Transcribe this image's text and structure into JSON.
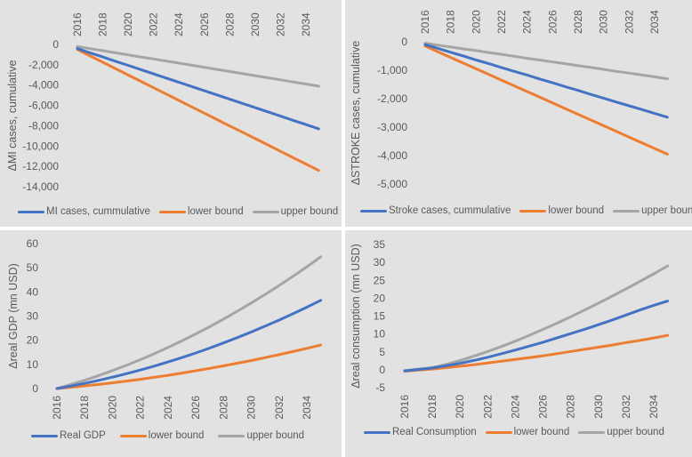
{
  "colors": {
    "central": "#4472c4",
    "lower": "#ed7d31",
    "upper": "#a5a5a5",
    "text": "#595959"
  },
  "chart_data": [
    {
      "type": "line",
      "title": "",
      "xlabel": "",
      "ylabel": "ΔMI cases, cumulative",
      "x": [
        2016,
        2017,
        2018,
        2019,
        2020,
        2021,
        2022,
        2023,
        2024,
        2025,
        2026,
        2027,
        2028,
        2029,
        2030,
        2031,
        2032,
        2033,
        2034,
        2035
      ],
      "xticks": [
        "2016",
        "2018",
        "2020",
        "2022",
        "2024",
        "2026",
        "2028",
        "2030",
        "2032",
        "2034"
      ],
      "yticks": [
        "0",
        "-2,000",
        "-4,000",
        "-6,000",
        "-8,000",
        "-10,000",
        "-12,000",
        "-14,000"
      ],
      "ylim": [
        -14000,
        0
      ],
      "legend_position": "bottom",
      "series": [
        {
          "name": "MI cases, cummulative",
          "values": [
            -400,
            -820,
            -1230,
            -1650,
            -2060,
            -2480,
            -2900,
            -3310,
            -3730,
            -4140,
            -4560,
            -4970,
            -5390,
            -5800,
            -6220,
            -6630,
            -7050,
            -7470,
            -7880,
            -8300
          ]
        },
        {
          "name": "lower bound",
          "values": [
            -500,
            -1130,
            -1750,
            -2380,
            -3010,
            -3630,
            -4260,
            -4880,
            -5510,
            -6140,
            -6760,
            -7390,
            -8020,
            -8640,
            -9270,
            -9890,
            -10520,
            -11150,
            -11770,
            -12400
          ]
        },
        {
          "name": "upper bound",
          "values": [
            -200,
            -410,
            -610,
            -820,
            -1020,
            -1230,
            -1430,
            -1640,
            -1840,
            -2050,
            -2250,
            -2460,
            -2660,
            -2870,
            -3070,
            -3280,
            -3480,
            -3690,
            -3890,
            -4100
          ]
        }
      ]
    },
    {
      "type": "line",
      "title": "",
      "xlabel": "",
      "ylabel": "ΔSTROKE cases, cumulative",
      "x": [
        2016,
        2017,
        2018,
        2019,
        2020,
        2021,
        2022,
        2023,
        2024,
        2025,
        2026,
        2027,
        2028,
        2029,
        2030,
        2031,
        2032,
        2033,
        2034,
        2035
      ],
      "xticks": [
        "2016",
        "2018",
        "2020",
        "2022",
        "2024",
        "2026",
        "2028",
        "2030",
        "2032",
        "2034"
      ],
      "yticks": [
        "0",
        "-1,000",
        "-2,000",
        "-3,000",
        "-4,000",
        "-5,000"
      ],
      "ylim": [
        -5000,
        0
      ],
      "legend_position": "bottom",
      "series": [
        {
          "name": "Stroke cases, cummulative",
          "values": [
            -100,
            -230,
            -370,
            -500,
            -640,
            -770,
            -910,
            -1040,
            -1170,
            -1310,
            -1440,
            -1580,
            -1710,
            -1850,
            -1980,
            -2120,
            -2250,
            -2380,
            -2520,
            -2650
          ]
        },
        {
          "name": "lower bound",
          "values": [
            -150,
            -350,
            -550,
            -750,
            -950,
            -1150,
            -1350,
            -1550,
            -1750,
            -1950,
            -2150,
            -2350,
            -2550,
            -2750,
            -2950,
            -3150,
            -3350,
            -3550,
            -3750,
            -3950
          ]
        },
        {
          "name": "upper bound",
          "values": [
            -50,
            -120,
            -180,
            -250,
            -310,
            -380,
            -440,
            -510,
            -580,
            -640,
            -710,
            -770,
            -840,
            -900,
            -970,
            -1040,
            -1100,
            -1170,
            -1230,
            -1300
          ]
        }
      ]
    },
    {
      "type": "line",
      "title": "",
      "xlabel": "",
      "ylabel": "Δreal GDP (mn USD)",
      "x": [
        2016,
        2017,
        2018,
        2019,
        2020,
        2021,
        2022,
        2023,
        2024,
        2025,
        2026,
        2027,
        2028,
        2029,
        2030,
        2031,
        2032,
        2033,
        2034,
        2035
      ],
      "xticks": [
        "2016",
        "2018",
        "2020",
        "2022",
        "2024",
        "2026",
        "2028",
        "2030",
        "2032",
        "2034"
      ],
      "yticks": [
        "60",
        "50",
        "40",
        "30",
        "20",
        "10",
        "0"
      ],
      "ylim": [
        0,
        60
      ],
      "legend_position": "bottom",
      "series": [
        {
          "name": "Real GDP",
          "values": [
            0,
            1.03,
            2.15,
            3.38,
            4.71,
            6.13,
            7.65,
            9.28,
            11.0,
            12.82,
            14.74,
            16.76,
            18.88,
            21.09,
            23.41,
            25.83,
            28.35,
            30.96,
            33.68,
            36.5
          ]
        },
        {
          "name": "lower bound",
          "values": [
            0,
            0.52,
            1.09,
            1.71,
            2.37,
            3.09,
            3.84,
            4.65,
            5.5,
            6.4,
            7.35,
            8.34,
            9.39,
            10.48,
            11.61,
            12.8,
            14.03,
            15.3,
            16.63,
            18.0
          ]
        },
        {
          "name": "upper bound",
          "values": [
            0,
            1.65,
            3.44,
            5.36,
            7.42,
            9.61,
            11.94,
            14.4,
            17.0,
            19.73,
            22.6,
            25.6,
            28.74,
            32.02,
            35.43,
            38.97,
            42.65,
            46.47,
            50.41,
            54.5
          ]
        }
      ]
    },
    {
      "type": "line",
      "title": "",
      "xlabel": "",
      "ylabel": "Δreal consumption (mn USD)",
      "x": [
        2016,
        2017,
        2018,
        2019,
        2020,
        2021,
        2022,
        2023,
        2024,
        2025,
        2026,
        2027,
        2028,
        2029,
        2030,
        2031,
        2032,
        2033,
        2034,
        2035
      ],
      "xticks": [
        "2016",
        "2018",
        "2020",
        "2022",
        "2024",
        "2026",
        "2028",
        "2030",
        "2032",
        "2034"
      ],
      "yticks": [
        "35",
        "30",
        "25",
        "20",
        "15",
        "10",
        "5",
        "0",
        "-5"
      ],
      "ylim": [
        -5,
        35
      ],
      "legend_position": "bottom",
      "series": [
        {
          "name": "Real Consumption",
          "values": [
            -0.3,
            0.1,
            0.5,
            1.1,
            1.8,
            2.6,
            3.5,
            4.5,
            5.5,
            6.6,
            7.7,
            8.9,
            10.1,
            11.3,
            12.6,
            13.9,
            15.3,
            16.7,
            18.0,
            19.2
          ]
        },
        {
          "name": "lower bound",
          "values": [
            -0.4,
            -0.1,
            0.2,
            0.6,
            1.0,
            1.4,
            1.9,
            2.4,
            2.9,
            3.4,
            3.9,
            4.5,
            5.1,
            5.7,
            6.3,
            6.9,
            7.6,
            8.2,
            8.9,
            9.6
          ]
        },
        {
          "name": "upper bound",
          "values": [
            -0.2,
            0.2,
            0.6,
            1.5,
            2.6,
            3.8,
            5.1,
            6.5,
            8.0,
            9.6,
            11.3,
            13.0,
            14.8,
            16.7,
            18.6,
            20.6,
            22.6,
            24.7,
            26.8,
            29.0
          ]
        }
      ]
    }
  ]
}
